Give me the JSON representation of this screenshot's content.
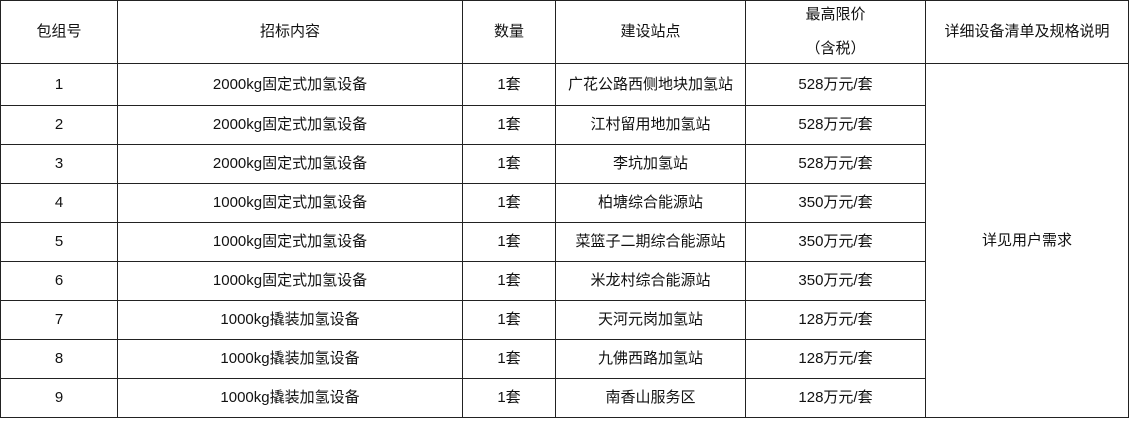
{
  "headers": {
    "package_no": "包组号",
    "content": "招标内容",
    "quantity": "数量",
    "site": "建设站点",
    "max_price": "最高限价",
    "max_price_note": "（含税）",
    "details": "详细设备清单及规格说明"
  },
  "details_value": "详见用户需求",
  "rows": [
    {
      "no": "1",
      "content": "2000kg固定式加氢设备",
      "qty": "1套",
      "site": "广花公路西侧地块加氢站",
      "price": "528万元/套"
    },
    {
      "no": "2",
      "content": "2000kg固定式加氢设备",
      "qty": "1套",
      "site": "江村留用地加氢站",
      "price": "528万元/套"
    },
    {
      "no": "3",
      "content": "2000kg固定式加氢设备",
      "qty": "1套",
      "site": "李坑加氢站",
      "price": "528万元/套"
    },
    {
      "no": "4",
      "content": "1000kg固定式加氢设备",
      "qty": "1套",
      "site": "柏塘综合能源站",
      "price": "350万元/套"
    },
    {
      "no": "5",
      "content": "1000kg固定式加氢设备",
      "qty": "1套",
      "site": "菜篮子二期综合能源站",
      "price": "350万元/套"
    },
    {
      "no": "6",
      "content": "1000kg固定式加氢设备",
      "qty": "1套",
      "site": "米龙村综合能源站",
      "price": "350万元/套"
    },
    {
      "no": "7",
      "content": "1000kg撬装加氢设备",
      "qty": "1套",
      "site": "天河元岗加氢站",
      "price": "128万元/套"
    },
    {
      "no": "8",
      "content": "1000kg撬装加氢设备",
      "qty": "1套",
      "site": "九佛西路加氢站",
      "price": "128万元/套"
    },
    {
      "no": "9",
      "content": "1000kg撬装加氢设备",
      "qty": "1套",
      "site": "南香山服务区",
      "price": "128万元/套"
    }
  ]
}
